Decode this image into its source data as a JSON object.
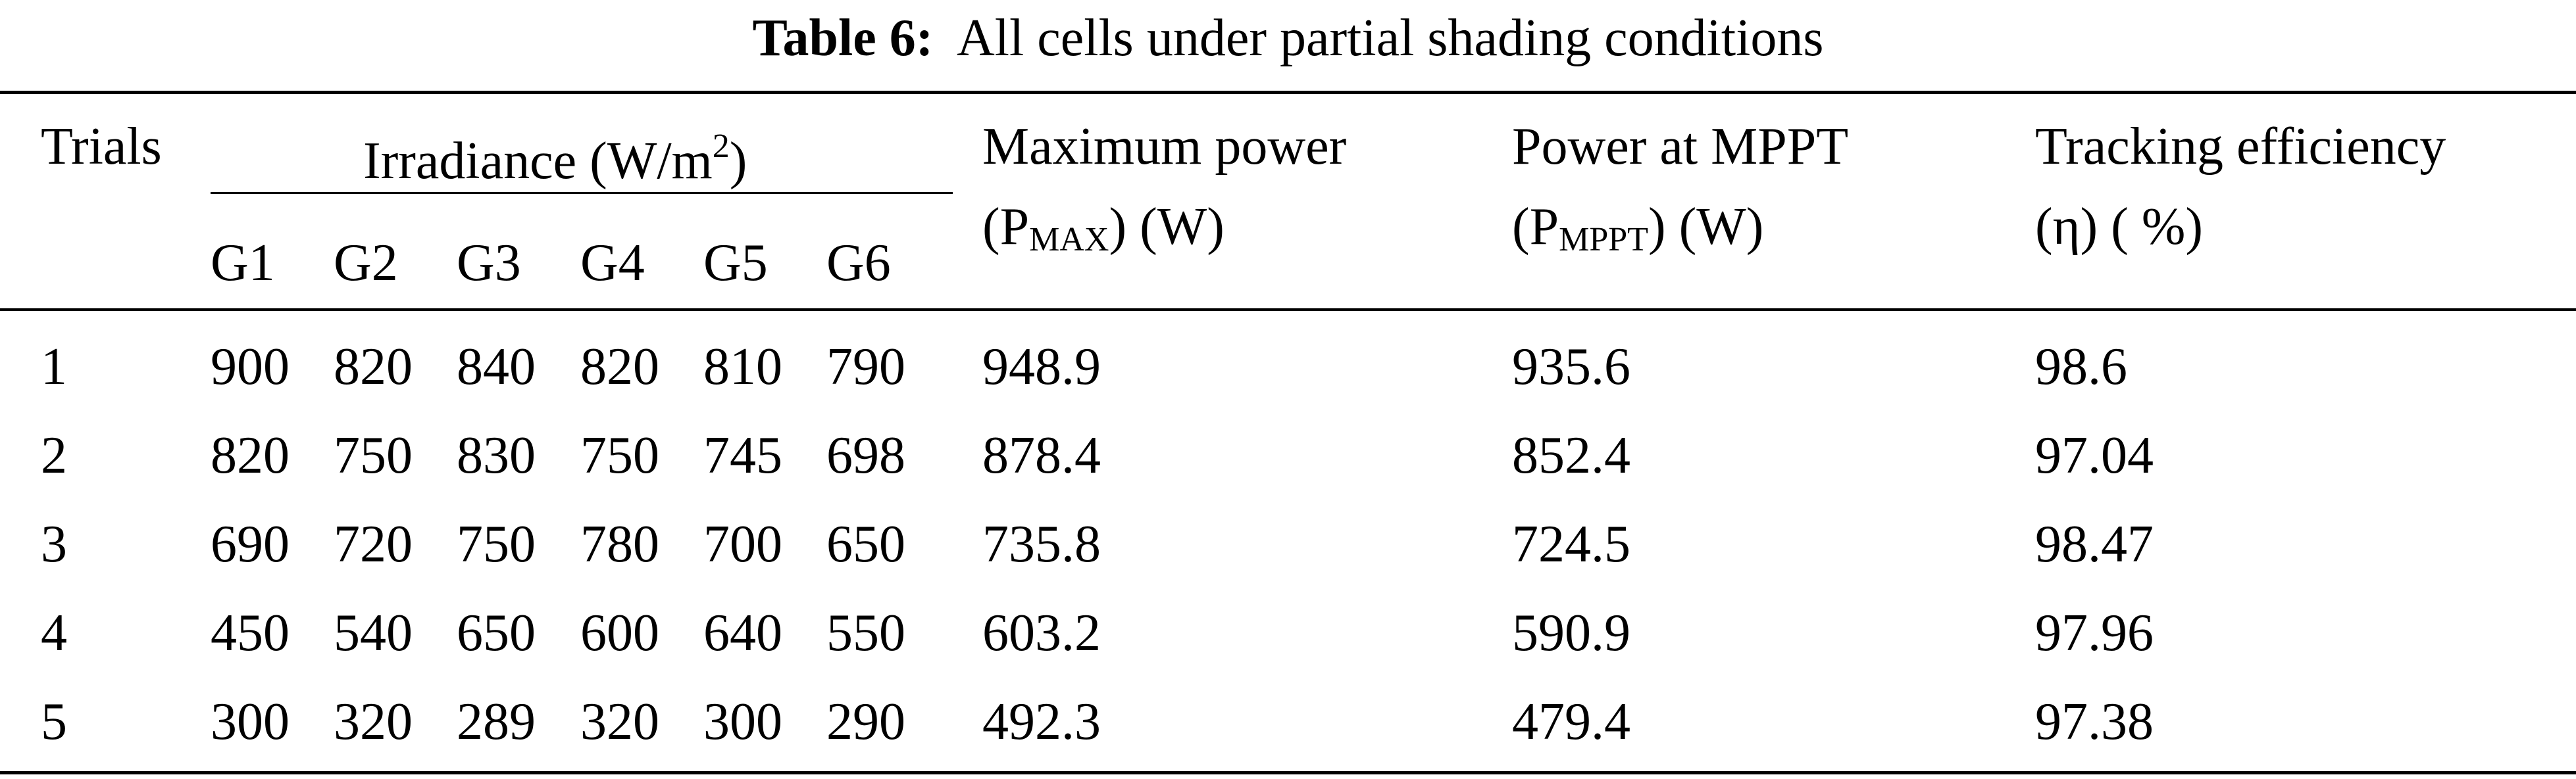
{
  "caption": {
    "label": "Table 6:",
    "text": "All cells under partial shading conditions"
  },
  "headers": {
    "trials": "Trials",
    "irradiance_prefix": "Irradiance (W/m",
    "irradiance_exp": "2",
    "irradiance_suffix": ")",
    "g_labels": [
      "G1",
      "G2",
      "G3",
      "G4",
      "G5",
      "G6"
    ],
    "pmax_line1": "Maximum power",
    "pmax_p": "(P",
    "pmax_sub": "MAX",
    "pmax_unit": ") (W)",
    "pmppt_line1": "Power at MPPT",
    "pmppt_p": "(P",
    "pmppt_sub": "MPPT",
    "pmppt_unit": ") (W)",
    "eff_line1": "Tracking efficiency",
    "eff_line2": "(η) ( %)"
  },
  "rows": [
    {
      "trial": "1",
      "g": [
        "900",
        "820",
        "840",
        "820",
        "810",
        "790"
      ],
      "pmax": "948.9",
      "pmppt": "935.6",
      "eff": "98.6"
    },
    {
      "trial": "2",
      "g": [
        "820",
        "750",
        "830",
        "750",
        "745",
        "698"
      ],
      "pmax": "878.4",
      "pmppt": "852.4",
      "eff": "97.04"
    },
    {
      "trial": "3",
      "g": [
        "690",
        "720",
        "750",
        "780",
        "700",
        "650"
      ],
      "pmax": "735.8",
      "pmppt": "724.5",
      "eff": "98.47"
    },
    {
      "trial": "4",
      "g": [
        "450",
        "540",
        "650",
        "600",
        "640",
        "550"
      ],
      "pmax": "603.2",
      "pmppt": "590.9",
      "eff": "97.96"
    },
    {
      "trial": "5",
      "g": [
        "300",
        "320",
        "289",
        "320",
        "300",
        "290"
      ],
      "pmax": "492.3",
      "pmppt": "479.4",
      "eff": "97.38"
    }
  ]
}
